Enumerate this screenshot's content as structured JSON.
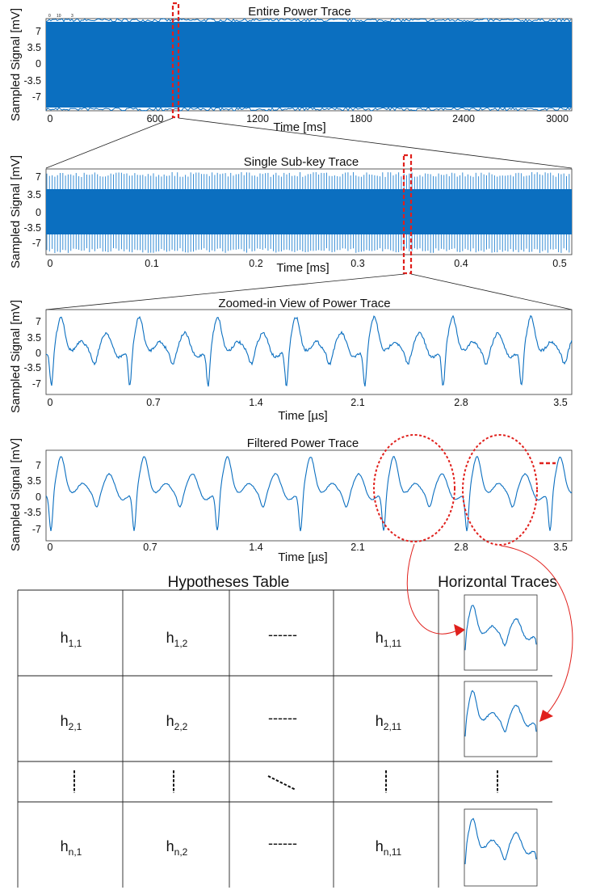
{
  "panels": [
    {
      "id": "entire",
      "title": "Entire Power Trace",
      "ylabel": "Sampled Signal [mV]",
      "xlabel": "Time [ms]",
      "xticks": [
        "0",
        "600",
        "1200",
        "1800",
        "2400",
        "3000"
      ],
      "yticks": [
        "7",
        "3.5",
        "0",
        "-3.5",
        "-7"
      ],
      "corner_ticks": [
        "0",
        "10",
        "3"
      ]
    },
    {
      "id": "subkey",
      "title": "Single Sub-key Trace",
      "ylabel": "Sampled Signal [mV]",
      "xlabel": "Time [ms]",
      "xticks": [
        "0",
        "0.1",
        "0.2",
        "0.3",
        "0.4",
        "0.5"
      ],
      "yticks": [
        "7",
        "3.5",
        "0",
        "-3.5",
        "-7"
      ]
    },
    {
      "id": "zoom",
      "title": "Zoomed-in View of Power Trace",
      "ylabel": "Sampled Signal [mV]",
      "xlabel": "Time [µs]",
      "xticks": [
        "0",
        "0.7",
        "1.4",
        "2.1",
        "2.8",
        "3.5"
      ],
      "yticks": [
        "7",
        "3.5",
        "0",
        "-3.5",
        "-7"
      ]
    },
    {
      "id": "filtered",
      "title": "Filtered Power Trace",
      "ylabel": "Sampled Signal [mV]",
      "xlabel": "Time [µs]",
      "xticks": [
        "0",
        "0.7",
        "1.4",
        "2.1",
        "2.8",
        "3.5"
      ],
      "yticks": [
        "7",
        "3.5",
        "0",
        "-3.5",
        "-7"
      ]
    }
  ],
  "table": {
    "title": "Hypotheses Table",
    "traces_title": "Horizontal Traces",
    "rows": [
      [
        {
          "b": "h",
          "s": "1,1"
        },
        {
          "b": "h",
          "s": "1,2"
        },
        {
          "b": "------",
          "s": ""
        },
        {
          "b": "h",
          "s": "1,11"
        }
      ],
      [
        {
          "b": "h",
          "s": "2,1"
        },
        {
          "b": "h",
          "s": "2,2"
        },
        {
          "b": "------",
          "s": ""
        },
        {
          "b": "h",
          "s": "2,11"
        }
      ],
      [
        {
          "b": "h",
          "s": "n,1"
        },
        {
          "b": "h",
          "s": "n,2"
        },
        {
          "b": "------",
          "s": ""
        },
        {
          "b": "h",
          "s": "n,11"
        }
      ]
    ]
  },
  "colors": {
    "trace": "#0b6fc0",
    "trace_light": "#3a8fd6",
    "highlight": "#e0201c",
    "grid_line": "#222222"
  }
}
